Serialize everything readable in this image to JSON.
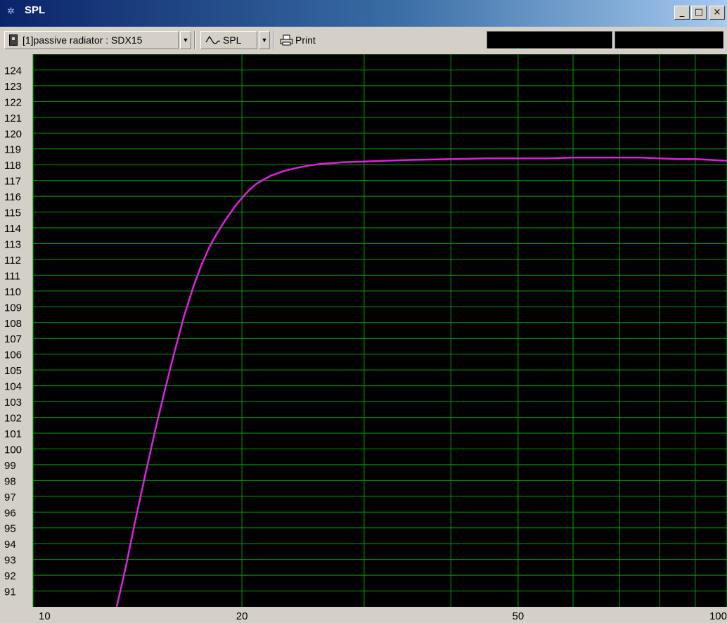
{
  "window": {
    "title": "SPL"
  },
  "titlebar_buttons": {
    "minimize": "_",
    "maximize": "□",
    "close": "×"
  },
  "toolbar": {
    "project_selector": "[1]passive radiator : SDX15",
    "graph_selector": "SPL",
    "print_label": "Print",
    "status_left": "",
    "status_right": ""
  },
  "icons": {
    "app": "app-icon",
    "project": "speaker-icon",
    "graph": "waveform-icon",
    "print": "printer-icon",
    "dropdown": "chevron-down-icon"
  },
  "colors": {
    "plot_background": "#000000",
    "grid": "#00a000",
    "curve": "#e020e0",
    "axis_text": "#000000"
  },
  "chart_data": {
    "type": "line",
    "x_scale": "log",
    "xlim": [
      10,
      100
    ],
    "ylim": [
      90,
      125
    ],
    "x_tick_labels": [
      "10",
      "20",
      "50",
      "100"
    ],
    "x_gridlines": [
      10,
      20,
      30,
      40,
      50,
      60,
      70,
      80,
      90,
      100
    ],
    "y_tick_labels": [
      "124",
      "123",
      "122",
      "121",
      "120",
      "119",
      "118",
      "117",
      "116",
      "115",
      "114",
      "113",
      "112",
      "111",
      "110",
      "109",
      "108",
      "107",
      "106",
      "105",
      "104",
      "103",
      "102",
      "101",
      "100",
      "99",
      "98",
      "97",
      "96",
      "95",
      "94",
      "93",
      "92",
      "91"
    ],
    "series": [
      {
        "x": [
          13.2,
          13.6,
          14,
          14.5,
          15,
          15.5,
          16,
          16.5,
          17,
          17.5,
          18,
          18.5,
          19,
          19.5,
          20,
          20.5,
          21,
          22,
          23,
          24,
          25,
          26,
          28,
          30,
          32,
          35,
          40,
          45,
          50,
          55,
          60,
          65,
          70,
          75,
          80,
          85,
          90,
          95,
          100
        ],
        "y": [
          90,
          92.5,
          95.2,
          98.3,
          101.2,
          103.8,
          106.2,
          108.4,
          110.2,
          111.7,
          112.9,
          113.8,
          114.6,
          115.3,
          115.9,
          116.4,
          116.8,
          117.3,
          117.6,
          117.8,
          117.95,
          118.05,
          118.15,
          118.2,
          118.25,
          118.3,
          118.35,
          118.4,
          118.4,
          118.4,
          118.45,
          118.45,
          118.45,
          118.45,
          118.4,
          118.35,
          118.35,
          118.3,
          118.25
        ]
      }
    ]
  }
}
